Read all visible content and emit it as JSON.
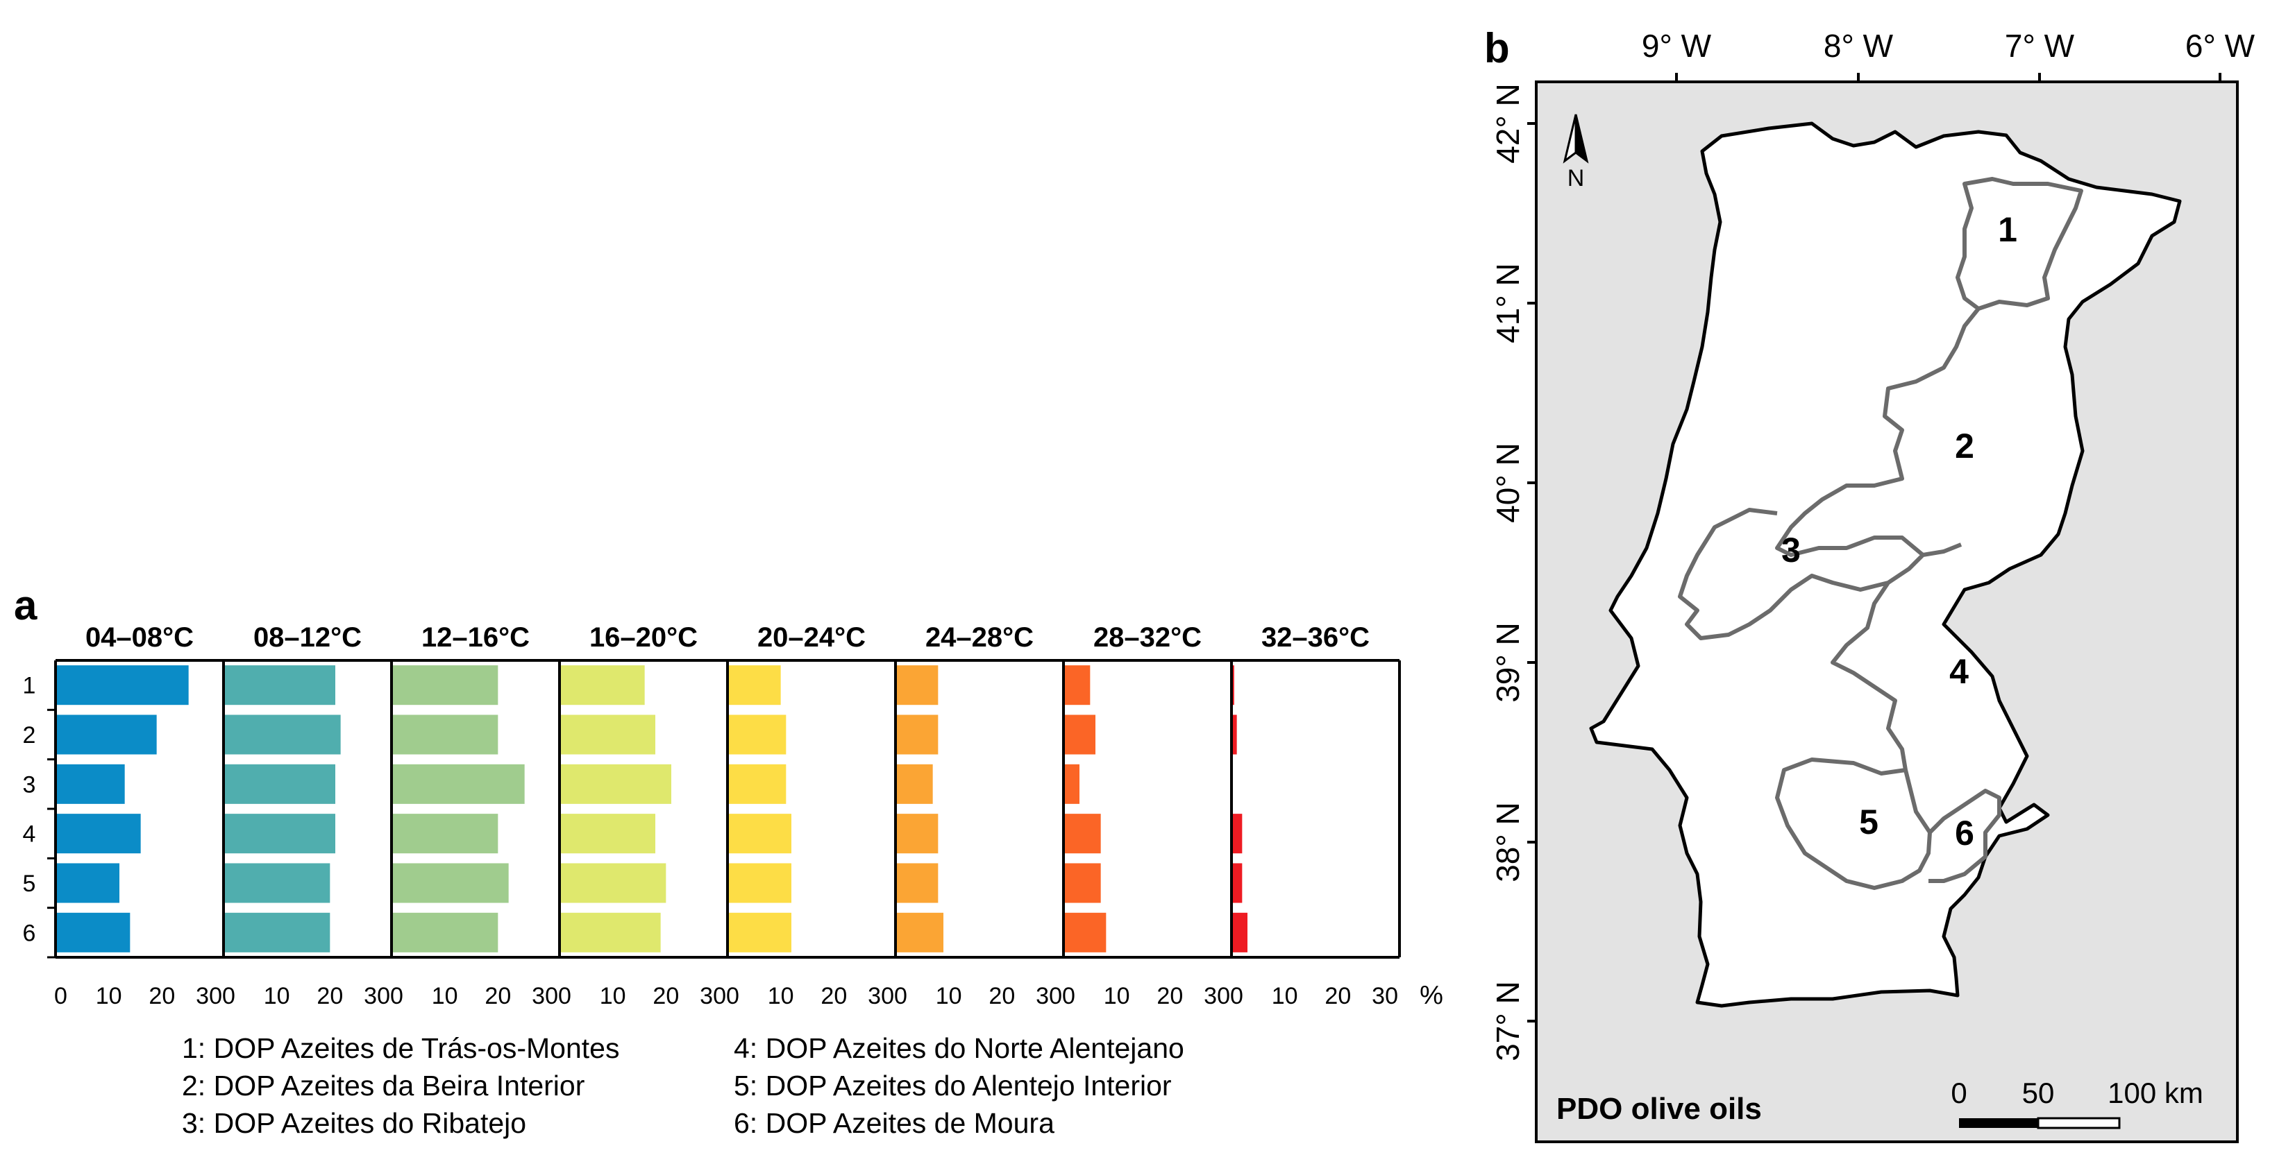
{
  "panel_a": {
    "letter": "a",
    "unit_label": "%",
    "legend": [
      "1: DOP Azeites de Trás-os-Montes",
      "2: DOP Azeites da Beira Interior",
      "3: DOP Azeites do Ribatejo",
      "4: DOP Azeites do Norte Alentejano",
      "5: DOP Azeites do Alentejo Interior",
      "6: DOP Azeites de Moura"
    ]
  },
  "panel_b": {
    "letter": "b",
    "map_title": "PDO olive oils",
    "lon_labels": [
      "9° W",
      "8° W",
      "7° W",
      "6° W"
    ],
    "lat_labels": [
      "42° N",
      "41° N",
      "40° N",
      "39° N",
      "38° N",
      "37° N"
    ],
    "north_label": "N",
    "scale_labels": [
      "0",
      "50",
      "100 km"
    ],
    "region_labels": [
      "1",
      "2",
      "3",
      "4",
      "5",
      "6"
    ],
    "colors": {
      "land": "#ffffff",
      "spain": "#e3e3e3",
      "border": "#000000",
      "region_outline": "#6b6b6b"
    }
  },
  "chart_data": {
    "type": "bar",
    "orientation": "horizontal",
    "categories": [
      "1",
      "2",
      "3",
      "4",
      "5",
      "6"
    ],
    "xlim": [
      0,
      30
    ],
    "xticks": [
      0,
      10,
      20,
      30
    ],
    "xlabel": "%",
    "panels": [
      {
        "name": "04–08°C",
        "color": "#0b8cc7",
        "values": [
          25,
          19,
          13,
          16,
          12,
          14
        ]
      },
      {
        "name": "08–12°C",
        "color": "#50aeae",
        "values": [
          21,
          22,
          21,
          21,
          20,
          20
        ]
      },
      {
        "name": "12–16°C",
        "color": "#a0cc8e",
        "values": [
          20,
          20,
          25,
          20,
          22,
          20
        ]
      },
      {
        "name": "16–20°C",
        "color": "#dfe86d",
        "values": [
          16,
          18,
          21,
          18,
          20,
          19
        ]
      },
      {
        "name": "20–24°C",
        "color": "#fddd46",
        "values": [
          10,
          11,
          11,
          12,
          12,
          12
        ]
      },
      {
        "name": "24–28°C",
        "color": "#fba534",
        "values": [
          8,
          8,
          7,
          8,
          8,
          9
        ]
      },
      {
        "name": "28–32°C",
        "color": "#fb6526",
        "values": [
          5,
          6,
          3,
          7,
          7,
          8
        ]
      },
      {
        "name": "32–36°C",
        "color": "#ee1b22",
        "values": [
          0.5,
          1,
          0,
          2,
          2,
          3
        ]
      }
    ]
  }
}
